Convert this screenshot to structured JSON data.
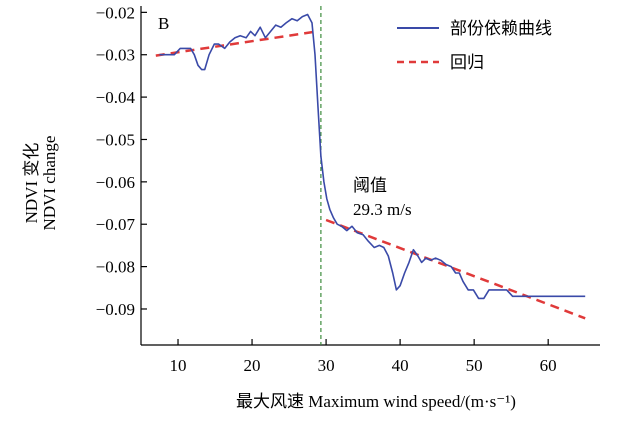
{
  "chart_data": {
    "type": "line",
    "panel_label": "B",
    "xlabel": "最大风速 Maximum wind speed/(m·s⁻¹)",
    "ylabel": [
      "NDVI 变化",
      "NDVI change"
    ],
    "xlim": [
      5,
      67
    ],
    "ylim": [
      -0.0985,
      -0.0185
    ],
    "xticks": [
      10,
      20,
      30,
      40,
      50,
      60
    ],
    "yticks": [
      -0.02,
      -0.03,
      -0.04,
      -0.05,
      -0.06,
      -0.07,
      -0.08,
      -0.09
    ],
    "ytick_labels": [
      "−0.02",
      "−0.03",
      "−0.04",
      "−0.05",
      "−0.06",
      "−0.07",
      "−0.08",
      "−0.09"
    ],
    "grid": false,
    "legend_position": "top-right",
    "threshold": {
      "x": 29.3,
      "label_line1": "阈值",
      "label_line2": "29.3 m/s",
      "color": "#3c8c3c"
    },
    "series": [
      {
        "name": "部份依赖曲线",
        "kind": "line",
        "color": "#3a4aa8",
        "x": [
          7.5,
          8.5,
          9.5,
          10.3,
          11,
          11.7,
          12.2,
          12.7,
          13.2,
          13.6,
          14.2,
          14.9,
          15.5,
          16.3,
          17,
          17.7,
          18.4,
          19.2,
          19.8,
          20.4,
          21.1,
          21.8,
          22.5,
          23.2,
          23.9,
          24.6,
          25.4,
          26.1,
          26.8,
          27.5,
          28.1,
          28.5,
          28.9,
          29.3,
          29.7,
          30.1,
          30.5,
          31,
          31.5,
          32.1,
          32.8,
          33.5,
          34.2,
          35,
          35.7,
          36.5,
          37.2,
          37.8,
          38.4,
          39,
          39.5,
          40,
          40.6,
          41.2,
          41.8,
          42.4,
          42.9,
          43.5,
          44.1,
          44.8,
          45.5,
          46.2,
          46.9,
          47.5,
          48,
          48.5,
          49.2,
          49.9,
          50.6,
          51.3,
          52,
          52.8,
          53.6,
          54.4,
          55.2,
          56,
          56.8,
          57.8,
          59,
          61,
          63,
          65
        ],
        "y": [
          -0.03,
          -0.03,
          -0.03,
          -0.0285,
          -0.0285,
          -0.0285,
          -0.03,
          -0.0325,
          -0.0335,
          -0.0335,
          -0.03,
          -0.0275,
          -0.0275,
          -0.0285,
          -0.027,
          -0.026,
          -0.0255,
          -0.026,
          -0.0245,
          -0.0255,
          -0.0235,
          -0.026,
          -0.0245,
          -0.023,
          -0.0235,
          -0.0225,
          -0.0215,
          -0.022,
          -0.021,
          -0.0205,
          -0.0225,
          -0.03,
          -0.042,
          -0.054,
          -0.06,
          -0.064,
          -0.0665,
          -0.0685,
          -0.07,
          -0.0705,
          -0.0715,
          -0.0705,
          -0.072,
          -0.0725,
          -0.074,
          -0.0755,
          -0.075,
          -0.0755,
          -0.0775,
          -0.0815,
          -0.0855,
          -0.0845,
          -0.0815,
          -0.079,
          -0.076,
          -0.0775,
          -0.079,
          -0.078,
          -0.0785,
          -0.078,
          -0.0785,
          -0.0795,
          -0.08,
          -0.0815,
          -0.0815,
          -0.0835,
          -0.0855,
          -0.0855,
          -0.0875,
          -0.0875,
          -0.0855,
          -0.0855,
          -0.0855,
          -0.0855,
          -0.087,
          -0.087,
          -0.087,
          -0.087,
          -0.087,
          -0.087,
          -0.087,
          -0.087
        ]
      },
      {
        "name": "回归",
        "kind": "dashed-line",
        "color": "#e03a3a",
        "segments": [
          {
            "x": [
              7,
              28.8
            ],
            "y": [
              -0.0302,
              -0.0245
            ]
          },
          {
            "x": [
              30,
              65
            ],
            "y": [
              -0.069,
              -0.0922
            ]
          }
        ]
      }
    ]
  }
}
